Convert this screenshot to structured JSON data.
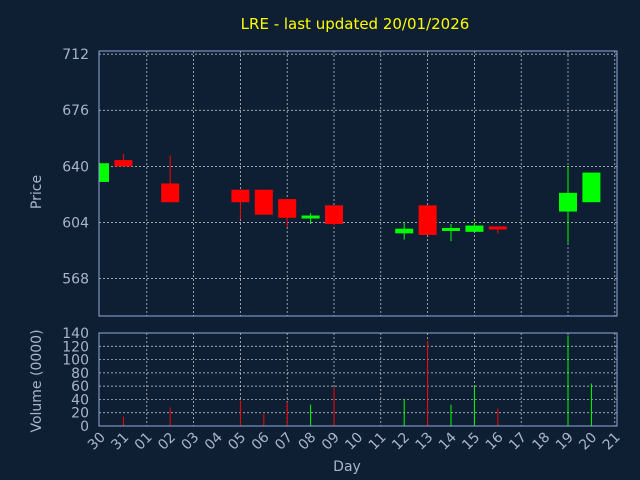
{
  "chart_data": {
    "type": "candlestick",
    "title": "LRE - last updated 20/01/2026",
    "xlabel": "Day",
    "price_axis": {
      "label": "Price",
      "ticks": [
        "712",
        "676",
        "640",
        "604",
        "568"
      ],
      "tick_values": [
        712,
        676,
        640,
        604,
        568
      ],
      "ylim": [
        544,
        714
      ]
    },
    "volume_axis": {
      "label": "Volume (0000)",
      "ticks": [
        "140",
        "120",
        "100",
        "80",
        "60",
        "40",
        "20",
        "0"
      ],
      "tick_values": [
        140,
        120,
        100,
        80,
        60,
        40,
        20,
        0
      ],
      "ylim": [
        0,
        140
      ]
    },
    "x_ticks": [
      "30",
      "31",
      "01",
      "02",
      "03",
      "04",
      "05",
      "06",
      "07",
      "08",
      "09",
      "10",
      "11",
      "12",
      "13",
      "14",
      "15",
      "16",
      "17",
      "18",
      "19",
      "20",
      "21"
    ],
    "colors": {
      "up": "#00ff00",
      "down": "#ff0000",
      "grid": "#ffffff",
      "frame": "#8fa9d8",
      "background": "#0f1f33",
      "title": "#ffff00",
      "text": "#aab4c8"
    },
    "grid": true,
    "candles": [
      {
        "day": "30",
        "open": 630,
        "high": 642,
        "low": 630,
        "close": 642,
        "volume": 0,
        "dir": "up"
      },
      {
        "day": "31",
        "open": 644,
        "high": 648,
        "low": 640,
        "close": 640,
        "volume": 14,
        "dir": "down"
      },
      {
        "day": "02",
        "open": 629,
        "high": 647,
        "low": 617,
        "close": 617,
        "volume": 28,
        "dir": "down"
      },
      {
        "day": "05",
        "open": 625,
        "high": 625,
        "low": 606,
        "close": 617,
        "volume": 38,
        "dir": "down"
      },
      {
        "day": "06",
        "open": 625,
        "high": 625,
        "low": 609,
        "close": 609,
        "volume": 18,
        "dir": "down"
      },
      {
        "day": "07",
        "open": 619,
        "high": 619,
        "low": 601,
        "close": 607,
        "volume": 36,
        "dir": "down"
      },
      {
        "day": "08",
        "open": 607,
        "high": 610,
        "low": 603,
        "close": 608,
        "volume": 32,
        "dir": "up"
      },
      {
        "day": "09",
        "open": 615,
        "high": 615,
        "low": 602,
        "close": 603,
        "volume": 58,
        "dir": "down"
      },
      {
        "day": "12",
        "open": 597,
        "high": 604,
        "low": 593,
        "close": 600,
        "volume": 40,
        "dir": "up"
      },
      {
        "day": "13",
        "open": 615,
        "high": 615,
        "low": 596,
        "close": 596,
        "volume": 128,
        "dir": "down"
      },
      {
        "day": "14",
        "open": 599,
        "high": 603,
        "low": 592,
        "close": 600,
        "volume": 32,
        "dir": "up"
      },
      {
        "day": "15",
        "open": 598,
        "high": 604,
        "low": 598,
        "close": 602,
        "volume": 60,
        "dir": "up"
      },
      {
        "day": "16",
        "open": 601,
        "high": 601,
        "low": 597,
        "close": 600,
        "volume": 26,
        "dir": "down"
      },
      {
        "day": "19",
        "open": 611,
        "high": 640,
        "low": 591,
        "close": 623,
        "volume": 136,
        "dir": "up"
      },
      {
        "day": "20",
        "open": 617,
        "high": 636,
        "low": 617,
        "close": 636,
        "volume": 64,
        "dir": "up"
      }
    ]
  }
}
